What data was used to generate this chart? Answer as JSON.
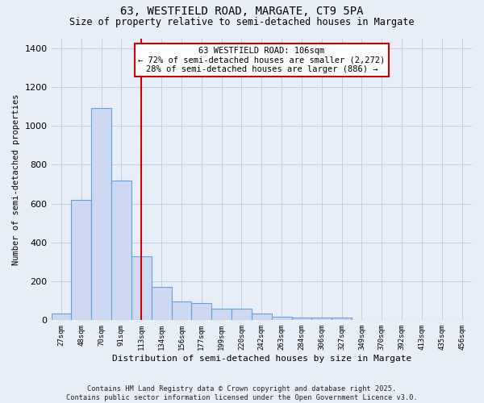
{
  "title_line1": "63, WESTFIELD ROAD, MARGATE, CT9 5PA",
  "title_line2": "Size of property relative to semi-detached houses in Margate",
  "xlabel": "Distribution of semi-detached houses by size in Margate",
  "ylabel": "Number of semi-detached properties",
  "categories": [
    "27sqm",
    "48sqm",
    "70sqm",
    "91sqm",
    "113sqm",
    "134sqm",
    "156sqm",
    "177sqm",
    "199sqm",
    "220sqm",
    "242sqm",
    "263sqm",
    "284sqm",
    "306sqm",
    "327sqm",
    "349sqm",
    "370sqm",
    "392sqm",
    "413sqm",
    "435sqm",
    "456sqm"
  ],
  "values": [
    35,
    620,
    1090,
    720,
    330,
    170,
    95,
    90,
    60,
    60,
    35,
    20,
    15,
    15,
    12,
    0,
    0,
    0,
    0,
    0,
    0
  ],
  "bar_color": "#ccd9f0",
  "bar_edge_color": "#6a9fd8",
  "property_bin_index": 4,
  "vline_color": "#cc0000",
  "annotation_text": "63 WESTFIELD ROAD: 106sqm\n← 72% of semi-detached houses are smaller (2,272)\n28% of semi-detached houses are larger (886) →",
  "annotation_box_color": "#ffffff",
  "annotation_box_edge_color": "#cc0000",
  "footer_text": "Contains HM Land Registry data © Crown copyright and database right 2025.\nContains public sector information licensed under the Open Government Licence v3.0.",
  "background_color": "#e8eef8",
  "ylim": [
    0,
    1450
  ],
  "yticks": [
    0,
    200,
    400,
    600,
    800,
    1000,
    1200,
    1400
  ],
  "grid_color": "#b8c8e0"
}
